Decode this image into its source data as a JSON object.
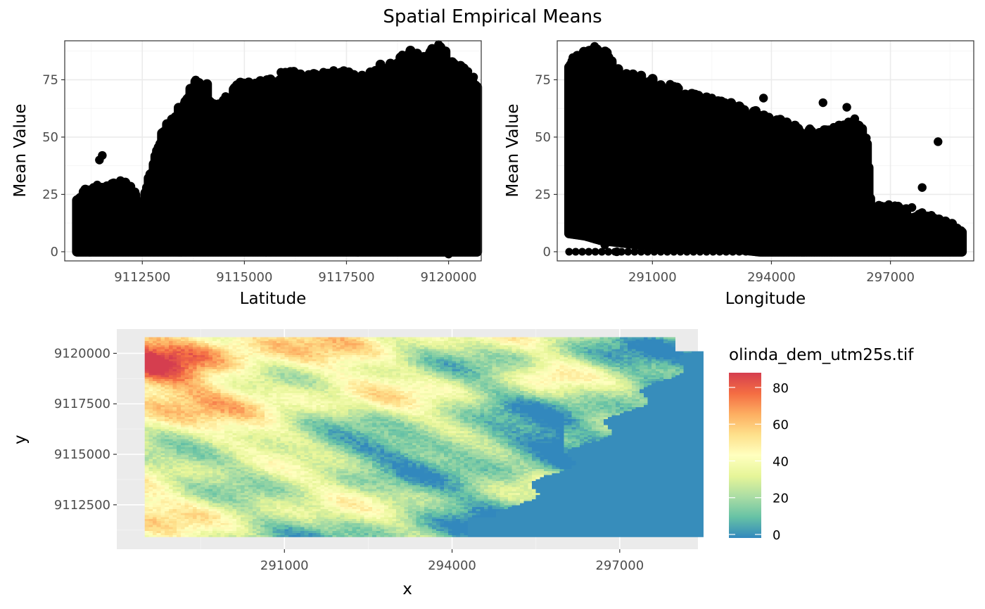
{
  "figure": {
    "title": "Spatial Empirical Means"
  },
  "chart_data": [
    {
      "type": "scatter",
      "id": "lat_scatter",
      "xlabel": "Latitude",
      "ylabel": "Mean Value",
      "xlim": [
        9110600,
        9120800
      ],
      "ylim": [
        -4,
        92
      ],
      "xticks": [
        9112500,
        9115000,
        9117500,
        9120000
      ],
      "xtick_labels": [
        "9112500",
        "9115000",
        "9117500",
        "9120000"
      ],
      "yticks": [
        0,
        25,
        50,
        75
      ],
      "ytick_labels": [
        "0",
        "25",
        "50",
        "75"
      ],
      "grid": true,
      "point_color": "#000000",
      "envelope": {
        "x": [
          9110900,
          9111500,
          9112000,
          9112300,
          9112500,
          9112800,
          9113000,
          9113400,
          9113800,
          9114100,
          9114300,
          9114600,
          9115000,
          9115400,
          9115800,
          9116200,
          9116600,
          9117000,
          9117400,
          9117800,
          9118200,
          9118600,
          9119000,
          9119400,
          9119800,
          9120100,
          9120400,
          9120700
        ],
        "upper": [
          24,
          27,
          29,
          24,
          18,
          40,
          52,
          60,
          74,
          70,
          60,
          66,
          73,
          72,
          75,
          76,
          77,
          76,
          77,
          73,
          77,
          82,
          85,
          84,
          88,
          80,
          77,
          72
        ],
        "lower": [
          0,
          0,
          0,
          0,
          0,
          0,
          0,
          0,
          0,
          0,
          0,
          0,
          0,
          0,
          0,
          0,
          0,
          0,
          0,
          0,
          0,
          0,
          0,
          0,
          0,
          0,
          0,
          0
        ]
      },
      "outliers": [
        {
          "x": 9111450,
          "y": 40
        },
        {
          "x": 9111520,
          "y": 42
        },
        {
          "x": 9111950,
          "y": 29
        },
        {
          "x": 9112050,
          "y": 26
        },
        {
          "x": 9115600,
          "y": 3
        },
        {
          "x": 9118300,
          "y": 4
        },
        {
          "x": 9120000,
          "y": -1
        }
      ]
    },
    {
      "type": "scatter",
      "id": "lon_scatter",
      "xlabel": "Longitude",
      "ylabel": "Mean Value",
      "xlim": [
        288600,
        299100
      ],
      "ylim": [
        -4,
        92
      ],
      "xticks": [
        291000,
        294000,
        297000
      ],
      "xtick_labels": [
        "291000",
        "294000",
        "297000"
      ],
      "yticks": [
        0,
        25,
        50,
        75
      ],
      "ytick_labels": [
        "0",
        "25",
        "50",
        "75"
      ],
      "grid": true,
      "point_color": "#000000",
      "envelope": {
        "x": [
          288900,
          289300,
          289700,
          290200,
          290700,
          291200,
          291700,
          292200,
          292700,
          293200,
          293700,
          294200,
          294700,
          295200,
          295700,
          296100,
          296400,
          296500,
          297000,
          297500,
          298000,
          298500,
          298800
        ],
        "upper": [
          82,
          85,
          88,
          76,
          74,
          72,
          68,
          65,
          63,
          62,
          58,
          55,
          52,
          50,
          52,
          55,
          50,
          17,
          18,
          17,
          14,
          10,
          6
        ],
        "lower": [
          8,
          7,
          5,
          4,
          3,
          3,
          2,
          2,
          1,
          1,
          0,
          0,
          0,
          0,
          0,
          0,
          0,
          0,
          0,
          0,
          0,
          0,
          0
        ]
      },
      "outliers": [
        {
          "x": 289800,
          "y": 3
        },
        {
          "x": 290100,
          "y": 0
        },
        {
          "x": 292500,
          "y": 67
        },
        {
          "x": 293800,
          "y": 67
        },
        {
          "x": 295300,
          "y": 65
        },
        {
          "x": 295900,
          "y": 63
        },
        {
          "x": 296100,
          "y": 58
        },
        {
          "x": 297800,
          "y": 28
        },
        {
          "x": 298200,
          "y": 48
        }
      ]
    },
    {
      "type": "heatmap",
      "id": "dem_raster",
      "xlabel": "x",
      "ylabel": "y",
      "xlim": [
        288000,
        298400
      ],
      "ylim": [
        9110300,
        9121200
      ],
      "data_extent": {
        "x": [
          288500,
          298500
        ],
        "y": [
          9110900,
          9120800
        ]
      },
      "xticks": [
        291000,
        294000,
        297000
      ],
      "xtick_labels": [
        "291000",
        "294000",
        "297000"
      ],
      "yticks": [
        9112500,
        9115000,
        9117500,
        9120000
      ],
      "ytick_labels": [
        "9112500",
        "9115000",
        "9117500",
        "9120000"
      ],
      "grid": true,
      "grid_rows": 100,
      "grid_cols": 140,
      "value_range": [
        0,
        88
      ],
      "colorscale": [
        "#3288bd",
        "#66c2a5",
        "#abdda4",
        "#e6f598",
        "#ffffbf",
        "#fee08b",
        "#fdae61",
        "#f46d43",
        "#d53e4f"
      ],
      "legend": {
        "title": "olinda_dem_utm25s.tif",
        "breaks": [
          0,
          20,
          40,
          60,
          80
        ],
        "labels": [
          "0",
          "20",
          "40",
          "60",
          "80"
        ],
        "placement": "right"
      }
    }
  ]
}
